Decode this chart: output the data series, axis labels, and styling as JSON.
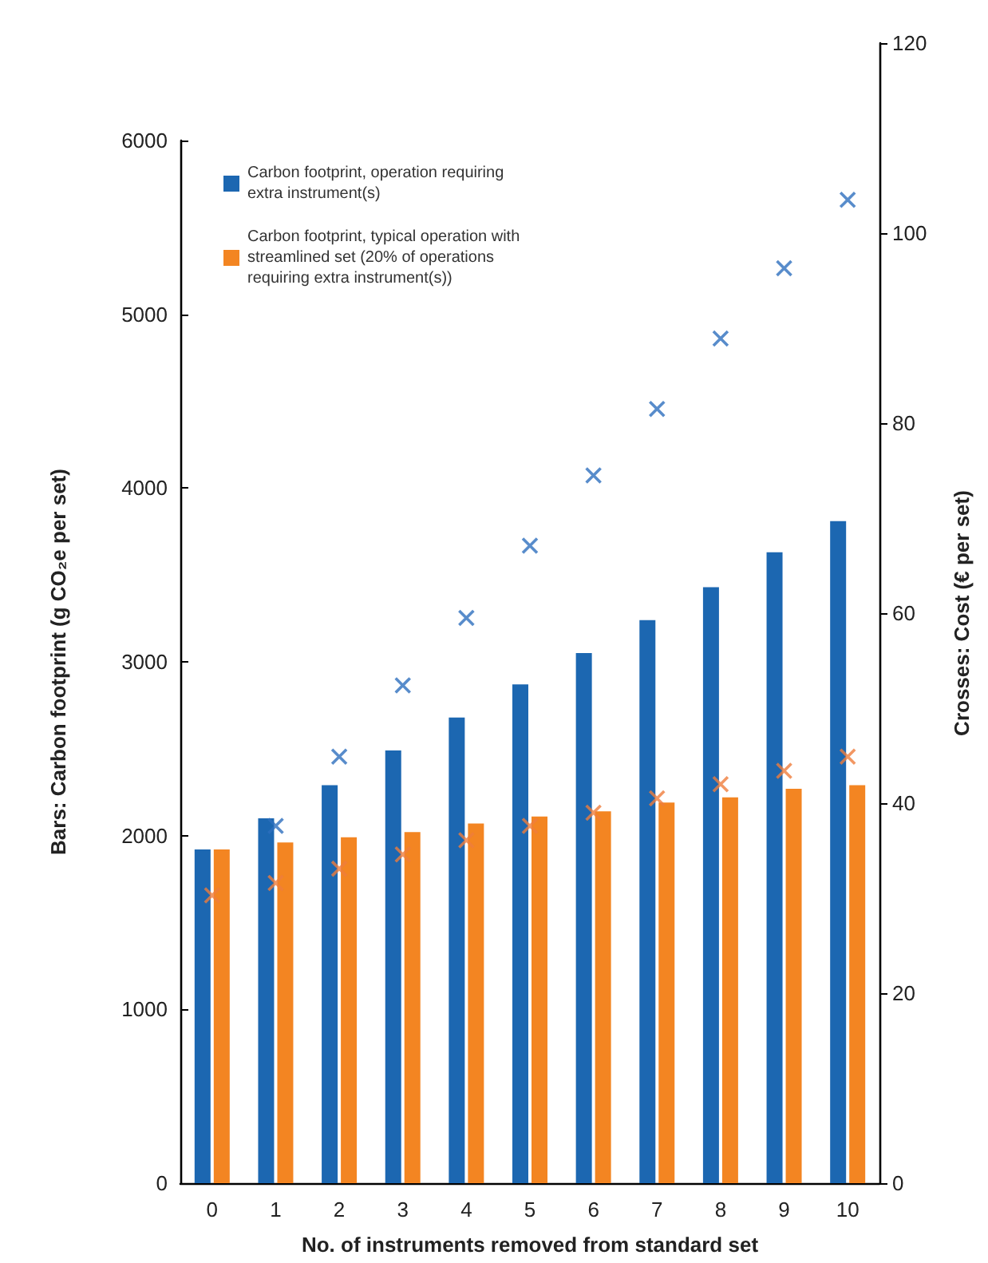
{
  "chart_data": {
    "type": "bar",
    "xlabel": "No. of instruments removed from standard set",
    "ylabel": "Bars: Carbon footprint (g CO₂e per set)",
    "y2label": "Crosses: Cost (€ per set)",
    "categories": [
      "0",
      "1",
      "2",
      "3",
      "4",
      "5",
      "6",
      "7",
      "8",
      "9",
      "10"
    ],
    "series": [
      {
        "name": "Carbon footprint, operation requiring extra instrument(s)",
        "color": "#1c67b1",
        "values": [
          1920,
          2100,
          2290,
          2490,
          2680,
          2870,
          3050,
          3240,
          3430,
          3630,
          3810
        ]
      },
      {
        "name": "Carbon footprint, typical operation with streamlined set (20% of operations requiring extra instrument(s))",
        "color": "#f38522",
        "values": [
          1920,
          1960,
          1990,
          2020,
          2070,
          2110,
          2140,
          2190,
          2220,
          2270,
          2290
        ]
      },
      {
        "type": "scatter",
        "axis": "y2",
        "marker": "cross",
        "color": "#2e6fbe",
        "values": [
          null,
          37.6,
          44.9,
          52.4,
          59.5,
          67.1,
          74.5,
          81.5,
          88.9,
          96.3,
          103.5
        ]
      },
      {
        "type": "scatter",
        "axis": "y2",
        "marker": "cross",
        "color": "#ef7d3c",
        "values": [
          30.3,
          31.6,
          33.1,
          34.6,
          36.1,
          37.6,
          39.0,
          40.5,
          42.0,
          43.4,
          44.9
        ]
      }
    ],
    "ylim": [
      0,
      6000
    ],
    "yticks": [
      0,
      1000,
      2000,
      3000,
      4000,
      5000,
      6000
    ],
    "y2lim": [
      0,
      120
    ],
    "y2ticks": [
      0,
      20,
      40,
      60,
      80,
      100,
      120
    ],
    "grid": false,
    "legend": "top left"
  }
}
